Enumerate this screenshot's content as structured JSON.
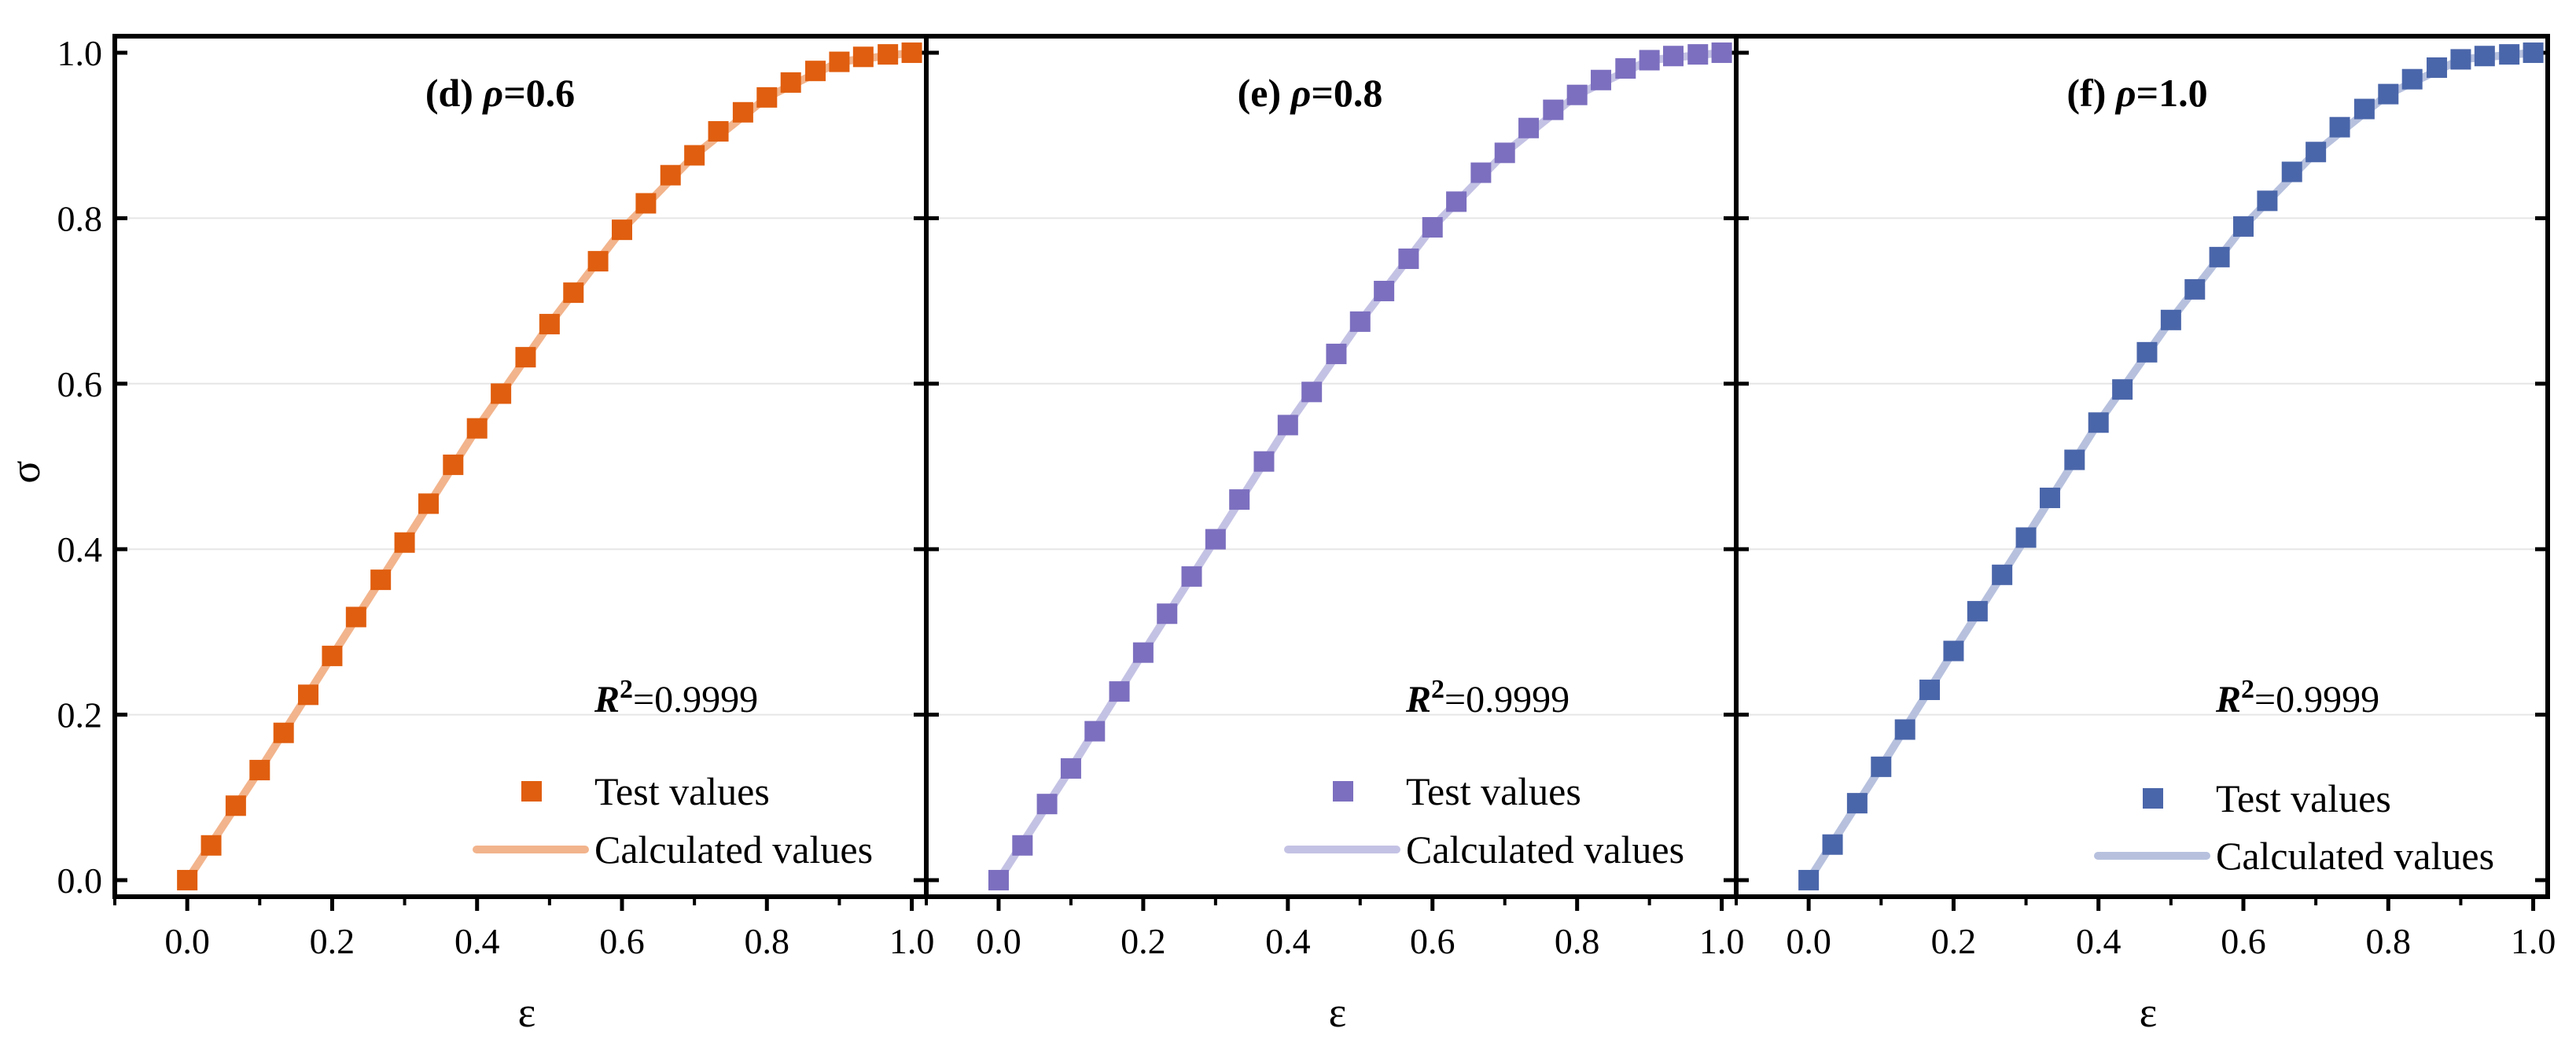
{
  "chart_data": [
    {
      "type": "scatter",
      "title": "(d) ρ=0.6",
      "title_prefix": "(d) ",
      "title_symbol": "ρ",
      "title_value": "=0.6",
      "xlabel": "ε",
      "ylabel": "σ",
      "xlim": [
        -0.1,
        1.02
      ],
      "ylim": [
        -0.02,
        1.02
      ],
      "xticks": [
        "0.0",
        "0.2",
        "0.4",
        "0.6",
        "0.8",
        "1.0"
      ],
      "yticks": [
        "0.0",
        "0.2",
        "0.4",
        "0.6",
        "0.8",
        "1.0"
      ],
      "grid": true,
      "legend_position": "bottom-right",
      "annotation": {
        "symbol": "R",
        "sup": "2",
        "value": "=0.9999"
      },
      "marker_color": "#E05E0F",
      "line_color": "#F2B48C",
      "series": [
        {
          "name": "Test values",
          "kind": "markers",
          "x": [
            0.0,
            0.033,
            0.067,
            0.1,
            0.133,
            0.167,
            0.2,
            0.233,
            0.267,
            0.3,
            0.333,
            0.367,
            0.4,
            0.433,
            0.467,
            0.5,
            0.533,
            0.567,
            0.6,
            0.633,
            0.667,
            0.7,
            0.733,
            0.767,
            0.8,
            0.833,
            0.867,
            0.9,
            0.933,
            0.967,
            1.0
          ],
          "y": [
            0.0,
            0.042,
            0.09,
            0.133,
            0.178,
            0.224,
            0.271,
            0.318,
            0.363,
            0.408,
            0.455,
            0.502,
            0.546,
            0.588,
            0.632,
            0.672,
            0.71,
            0.748,
            0.786,
            0.818,
            0.852,
            0.876,
            0.905,
            0.928,
            0.946,
            0.964,
            0.978,
            0.989,
            0.995,
            0.998,
            1.0
          ]
        },
        {
          "name": "Calculated values",
          "kind": "line",
          "x": [
            0.0,
            0.1,
            0.2,
            0.3,
            0.4,
            0.5,
            0.6,
            0.7,
            0.8,
            0.9,
            1.0
          ],
          "y": [
            0.0,
            0.133,
            0.271,
            0.408,
            0.546,
            0.672,
            0.786,
            0.876,
            0.946,
            0.989,
            1.0
          ]
        }
      ]
    },
    {
      "type": "scatter",
      "title": "(e) ρ=0.8",
      "title_prefix": "(e)  ",
      "title_symbol": "ρ",
      "title_value": "=0.8",
      "xlabel": "ε",
      "ylabel": "",
      "xlim": [
        -0.1,
        1.02
      ],
      "ylim": [
        -0.02,
        1.02
      ],
      "xticks": [
        "0.0",
        "0.2",
        "0.4",
        "0.6",
        "0.8",
        "1.0"
      ],
      "yticks": [],
      "grid": true,
      "legend_position": "bottom-right",
      "annotation": {
        "symbol": "R",
        "sup": "2",
        "value": "=0.9999"
      },
      "marker_color": "#7C6FBF",
      "line_color": "#C4C2E4",
      "series": [
        {
          "name": "Test values",
          "kind": "markers",
          "x": [
            0.0,
            0.033,
            0.067,
            0.1,
            0.133,
            0.167,
            0.2,
            0.233,
            0.267,
            0.3,
            0.333,
            0.367,
            0.4,
            0.433,
            0.467,
            0.5,
            0.533,
            0.567,
            0.6,
            0.633,
            0.667,
            0.7,
            0.733,
            0.767,
            0.8,
            0.833,
            0.867,
            0.9,
            0.933,
            0.967,
            1.0
          ],
          "y": [
            0.0,
            0.042,
            0.092,
            0.135,
            0.18,
            0.228,
            0.275,
            0.322,
            0.367,
            0.412,
            0.46,
            0.506,
            0.55,
            0.59,
            0.636,
            0.675,
            0.712,
            0.751,
            0.789,
            0.82,
            0.855,
            0.879,
            0.909,
            0.931,
            0.949,
            0.967,
            0.981,
            0.991,
            0.996,
            0.998,
            1.0
          ]
        },
        {
          "name": "Calculated values",
          "kind": "line",
          "x": [
            0.0,
            0.1,
            0.2,
            0.3,
            0.4,
            0.5,
            0.6,
            0.7,
            0.8,
            0.9,
            1.0
          ],
          "y": [
            0.0,
            0.135,
            0.275,
            0.412,
            0.55,
            0.675,
            0.789,
            0.879,
            0.949,
            0.991,
            1.0
          ]
        }
      ]
    },
    {
      "type": "scatter",
      "title": "(f) ρ=1.0",
      "title_prefix": "(f) ",
      "title_symbol": "ρ",
      "title_value": "=1.0",
      "xlabel": "ε",
      "ylabel": "",
      "xlim": [
        -0.1,
        1.02
      ],
      "ylim": [
        -0.02,
        1.02
      ],
      "xticks": [
        "0.0",
        "0.2",
        "0.4",
        "0.6",
        "0.8",
        "1.0"
      ],
      "yticks": [],
      "grid": true,
      "legend_position": "bottom-right",
      "annotation": {
        "symbol": "R",
        "sup": "2",
        "value": "=0.9999"
      },
      "marker_color": "#4A66AA",
      "line_color": "#B7C1DE",
      "series": [
        {
          "name": "Test values",
          "kind": "markers",
          "x": [
            0.0,
            0.033,
            0.067,
            0.1,
            0.133,
            0.167,
            0.2,
            0.233,
            0.267,
            0.3,
            0.333,
            0.367,
            0.4,
            0.433,
            0.467,
            0.5,
            0.533,
            0.567,
            0.6,
            0.633,
            0.667,
            0.7,
            0.733,
            0.767,
            0.8,
            0.833,
            0.867,
            0.9,
            0.933,
            0.967,
            1.0
          ],
          "y": [
            0.0,
            0.043,
            0.093,
            0.137,
            0.182,
            0.23,
            0.277,
            0.325,
            0.369,
            0.414,
            0.462,
            0.508,
            0.553,
            0.593,
            0.638,
            0.677,
            0.714,
            0.753,
            0.79,
            0.821,
            0.856,
            0.88,
            0.91,
            0.932,
            0.95,
            0.968,
            0.982,
            0.992,
            0.996,
            0.998,
            1.0
          ]
        },
        {
          "name": "Calculated values",
          "kind": "line",
          "x": [
            0.0,
            0.1,
            0.2,
            0.3,
            0.4,
            0.5,
            0.6,
            0.7,
            0.8,
            0.9,
            1.0
          ],
          "y": [
            0.0,
            0.137,
            0.277,
            0.414,
            0.553,
            0.677,
            0.79,
            0.88,
            0.95,
            0.992,
            1.0
          ]
        }
      ]
    }
  ]
}
